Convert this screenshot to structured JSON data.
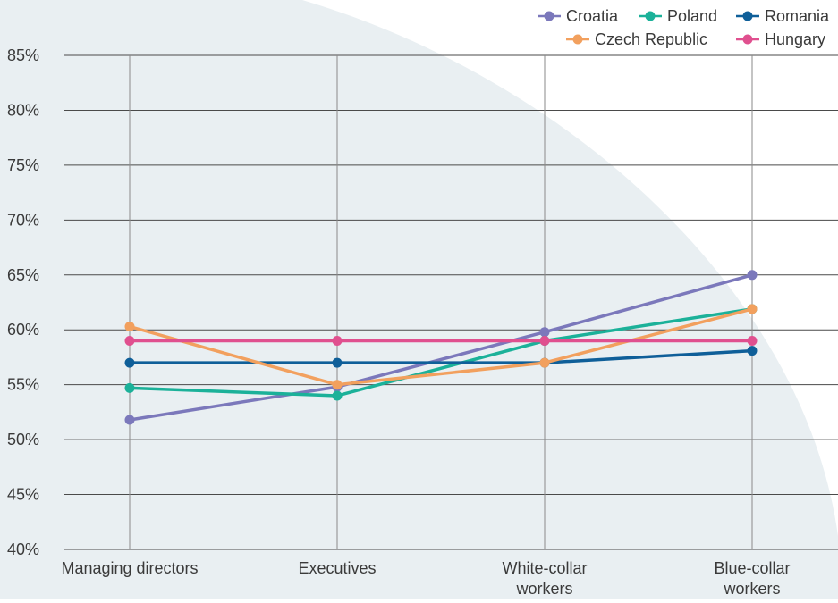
{
  "chart_data": {
    "type": "line",
    "title": "",
    "xlabel": "",
    "ylabel": "",
    "categories": [
      [
        "Managing directors"
      ],
      [
        "Executives"
      ],
      [
        "White-collar",
        "workers"
      ],
      [
        "Blue-collar",
        "workers"
      ]
    ],
    "y_ticks": [
      "40%",
      "45%",
      "50%",
      "55%",
      "60%",
      "65%",
      "70%",
      "75%",
      "80%",
      "85%"
    ],
    "ylim": [
      40,
      85
    ],
    "y_unit": "percent",
    "grid": true,
    "legend_position": "top-right",
    "series": [
      {
        "name": "Croatia",
        "color": "#7b78bb",
        "values": [
          51.8,
          54.8,
          59.8,
          65.0
        ]
      },
      {
        "name": "Poland",
        "color": "#1bb199",
        "values": [
          54.7,
          54.0,
          59.0,
          61.9
        ]
      },
      {
        "name": "Romania",
        "color": "#0f5f99",
        "values": [
          57.0,
          57.0,
          57.0,
          58.1
        ]
      },
      {
        "name": "Czech Republic",
        "color": "#f2a05e",
        "values": [
          60.3,
          55.0,
          57.0,
          61.9
        ]
      },
      {
        "name": "Hungary",
        "color": "#e0508f",
        "values": [
          59.0,
          59.0,
          59.0,
          59.0
        ]
      }
    ],
    "background_shape_color": "#e9eff2"
  }
}
